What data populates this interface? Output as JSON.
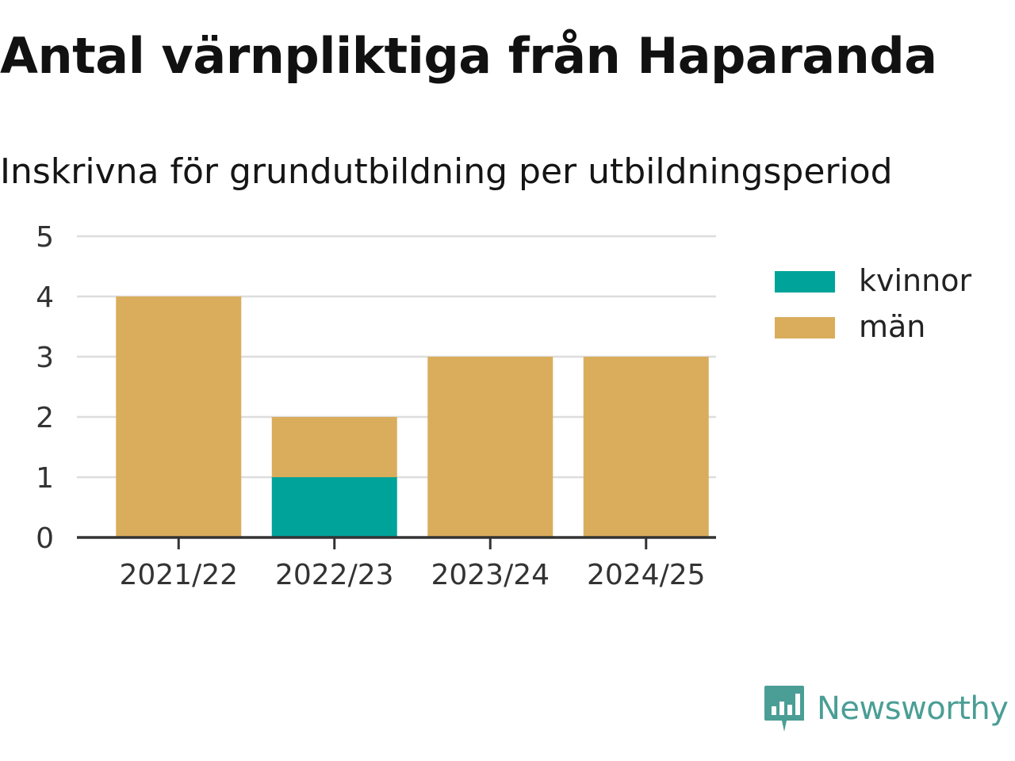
{
  "chart_data": {
    "type": "bar",
    "stacked": true,
    "title": "Antal värnpliktiga från Haparanda",
    "subtitle": "Inskrivna för grundutbildning per utbildningsperiod",
    "categories": [
      "2021/22",
      "2022/23",
      "2023/24",
      "2024/25"
    ],
    "series": [
      {
        "name": "kvinnor",
        "color": "#00a399",
        "values": [
          0,
          1,
          0,
          0
        ]
      },
      {
        "name": "män",
        "color": "#d9ad5b",
        "values": [
          4,
          1,
          3,
          3
        ]
      }
    ],
    "ylim": [
      0,
      5
    ],
    "yticks": [
      "0",
      "1",
      "2",
      "3",
      "4",
      "5"
    ],
    "grid": true,
    "legend_position": "right"
  },
  "brand": {
    "name": "Newsworthy",
    "color": "#4a9e95"
  }
}
